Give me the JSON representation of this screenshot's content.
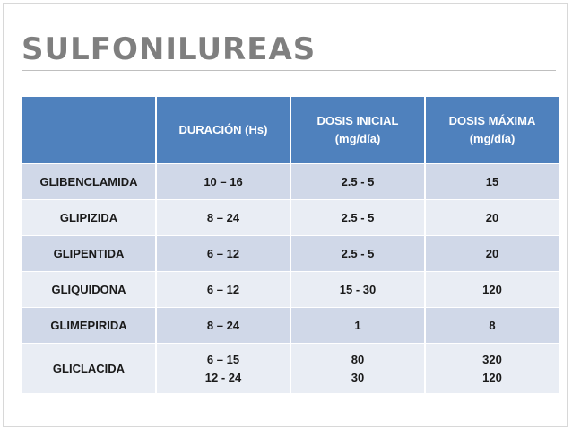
{
  "title": "SULFONILUREAS",
  "table": {
    "headers": [
      "",
      "DURACIÓN (Hs)",
      [
        "DOSIS INICIAL",
        "(mg/día)"
      ],
      [
        "DOSIS MÁXIMA",
        "(mg/día)"
      ]
    ],
    "rows": [
      {
        "drug": "GLIBENCLAMIDA",
        "duration": [
          "10 – 16"
        ],
        "initial": [
          "2.5 - 5"
        ],
        "max": [
          "15"
        ]
      },
      {
        "drug": "GLIPIZIDA",
        "duration": [
          "8 – 24"
        ],
        "initial": [
          "2.5 - 5"
        ],
        "max": [
          "20"
        ]
      },
      {
        "drug": "GLIPENTIDA",
        "duration": [
          "6 – 12"
        ],
        "initial": [
          "2.5 - 5"
        ],
        "max": [
          "20"
        ]
      },
      {
        "drug": "GLIQUIDONA",
        "duration": [
          "6 – 12"
        ],
        "initial": [
          "15 - 30"
        ],
        "max": [
          "120"
        ]
      },
      {
        "drug": "GLIMEPIRIDA",
        "duration": [
          "8 – 24"
        ],
        "initial": [
          "1"
        ],
        "max": [
          "8"
        ]
      },
      {
        "drug": "GLICLACIDA",
        "duration": [
          "6 – 15",
          "12 - 24"
        ],
        "initial": [
          "80",
          "30"
        ],
        "max": [
          "320",
          "120"
        ]
      }
    ]
  },
  "colors": {
    "header_bg": "#4f81bd",
    "row_even": "#d0d8e8",
    "row_odd": "#e9edf4",
    "title": "#7f7f7f"
  }
}
